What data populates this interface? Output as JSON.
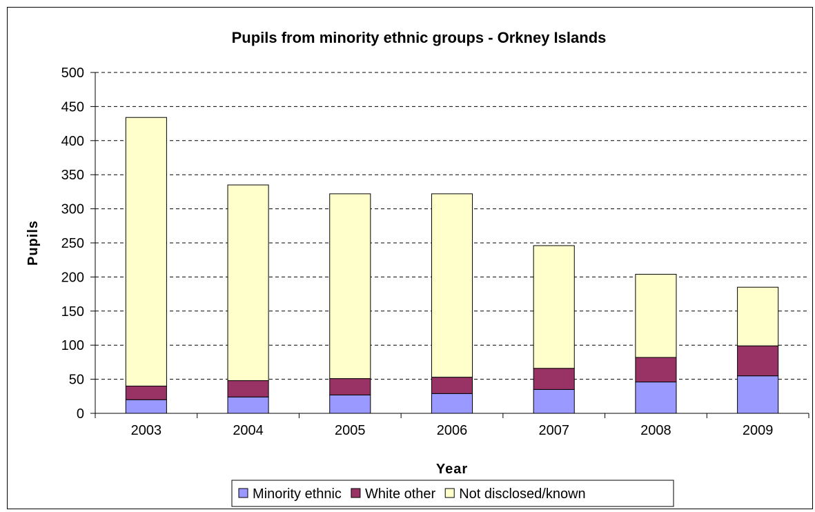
{
  "chart_data": {
    "type": "bar",
    "stacked": true,
    "title": "Pupils from minority ethnic groups - Orkney Islands",
    "xlabel": "Year",
    "ylabel": "Pupils",
    "ylim": [
      0,
      500
    ],
    "yticks": [
      0,
      50,
      100,
      150,
      200,
      250,
      300,
      350,
      400,
      450,
      500
    ],
    "grid": true,
    "legend_position": "bottom",
    "categories": [
      "2003",
      "2004",
      "2005",
      "2006",
      "2007",
      "2008",
      "2009"
    ],
    "series": [
      {
        "name": "Minority ethnic",
        "color": "#9999ff",
        "values": [
          20,
          24,
          27,
          29,
          35,
          46,
          55
        ]
      },
      {
        "name": "White other",
        "color": "#993366",
        "values": [
          20,
          24,
          24,
          24,
          31,
          36,
          44
        ]
      },
      {
        "name": "Not disclosed/known",
        "color": "#ffffcc",
        "values": [
          394,
          287,
          271,
          269,
          180,
          122,
          86
        ]
      }
    ]
  }
}
